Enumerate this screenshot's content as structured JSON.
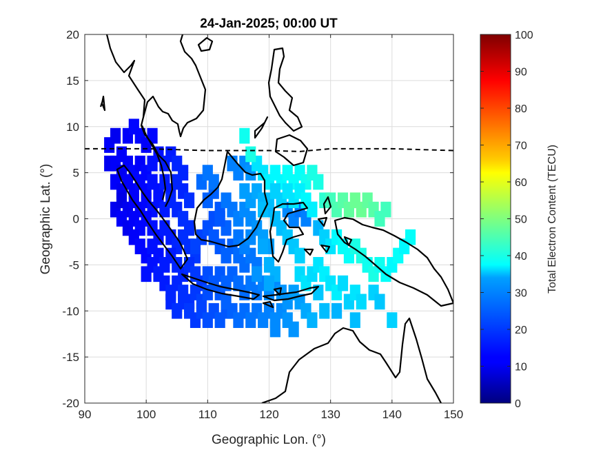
{
  "chart_data": {
    "type": "heatmap",
    "title": "24-Jan-2025; 00:00 UT",
    "xlabel": "Geographic Lon. (°)",
    "ylabel": "Geographic Lat. (°)",
    "xlim": [
      90,
      150
    ],
    "ylim": [
      -20,
      20
    ],
    "xticks": [
      90,
      100,
      110,
      120,
      130,
      140,
      150
    ],
    "yticks": [
      -20,
      -15,
      -10,
      -5,
      0,
      5,
      10,
      15,
      20
    ],
    "grid": true,
    "colormap": "jet",
    "colorbar": {
      "label": "Total Electron Content (TECU)",
      "range": [
        0,
        100
      ],
      "ticks": [
        0,
        10,
        20,
        30,
        40,
        50,
        60,
        70,
        80,
        90,
        100
      ]
    },
    "magnetic_equator": {
      "style": "dashed",
      "points": [
        [
          90,
          7.6
        ],
        [
          100,
          7.6
        ],
        [
          105,
          7.5
        ],
        [
          110,
          7.4
        ],
        [
          120,
          7.4
        ],
        [
          125,
          7.3
        ],
        [
          130,
          7.6
        ],
        [
          140,
          7.6
        ],
        [
          150,
          7.4
        ]
      ]
    },
    "tec_cells": [
      [
        94,
        8,
        12
      ],
      [
        95,
        9,
        11
      ],
      [
        96,
        7,
        12
      ],
      [
        97,
        9,
        12
      ],
      [
        98,
        10,
        13
      ],
      [
        99,
        9,
        13
      ],
      [
        100,
        8,
        12
      ],
      [
        101,
        9,
        13
      ],
      [
        94,
        6,
        11
      ],
      [
        95,
        6,
        12
      ],
      [
        96,
        5,
        11
      ],
      [
        97,
        6,
        12
      ],
      [
        98,
        5,
        13
      ],
      [
        99,
        6,
        12
      ],
      [
        100,
        5,
        13
      ],
      [
        101,
        6,
        14
      ],
      [
        102,
        7,
        14
      ],
      [
        103,
        6,
        15
      ],
      [
        104,
        7,
        15
      ],
      [
        105,
        6,
        16
      ],
      [
        106,
        5,
        16
      ],
      [
        95,
        4,
        12
      ],
      [
        96,
        3,
        11
      ],
      [
        97,
        4,
        12
      ],
      [
        98,
        3,
        12
      ],
      [
        99,
        4,
        13
      ],
      [
        100,
        3,
        13
      ],
      [
        101,
        4,
        14
      ],
      [
        102,
        3,
        14
      ],
      [
        103,
        4,
        15
      ],
      [
        104,
        3,
        15
      ],
      [
        105,
        4,
        16
      ],
      [
        106,
        3,
        16
      ],
      [
        107,
        2,
        17
      ],
      [
        95,
        1,
        11
      ],
      [
        96,
        2,
        10
      ],
      [
        97,
        1,
        11
      ],
      [
        98,
        2,
        12
      ],
      [
        99,
        1,
        12
      ],
      [
        100,
        2,
        13
      ],
      [
        101,
        1,
        14
      ],
      [
        102,
        2,
        14
      ],
      [
        103,
        1,
        15
      ],
      [
        104,
        2,
        16
      ],
      [
        105,
        1,
        16
      ],
      [
        106,
        0,
        17
      ],
      [
        107,
        -1,
        17
      ],
      [
        96,
        0,
        12
      ],
      [
        97,
        -1,
        11
      ],
      [
        98,
        0,
        12
      ],
      [
        99,
        -1,
        13
      ],
      [
        100,
        0,
        13
      ],
      [
        101,
        -1,
        14
      ],
      [
        102,
        -2,
        14
      ],
      [
        103,
        -1,
        15
      ],
      [
        104,
        -2,
        15
      ],
      [
        105,
        -3,
        16
      ],
      [
        106,
        -2,
        17
      ],
      [
        107,
        -3,
        17
      ],
      [
        108,
        -4,
        18
      ],
      [
        98,
        -2,
        12
      ],
      [
        99,
        -3,
        13
      ],
      [
        100,
        -4,
        13
      ],
      [
        101,
        -3,
        14
      ],
      [
        102,
        -4,
        14
      ],
      [
        103,
        -5,
        15
      ],
      [
        104,
        -4,
        15
      ],
      [
        105,
        -5,
        16
      ],
      [
        106,
        -6,
        16
      ],
      [
        107,
        -5,
        17
      ],
      [
        108,
        -6,
        18
      ],
      [
        109,
        -7,
        18
      ],
      [
        100,
        -6,
        14
      ],
      [
        101,
        -5,
        14
      ],
      [
        102,
        -6,
        15
      ],
      [
        103,
        -7,
        15
      ],
      [
        104,
        -8,
        16
      ],
      [
        105,
        -7,
        16
      ],
      [
        106,
        -8,
        17
      ],
      [
        107,
        -9,
        17
      ],
      [
        108,
        -8,
        18
      ],
      [
        109,
        -9,
        19
      ],
      [
        110,
        -8,
        20
      ],
      [
        104,
        -9,
        16
      ],
      [
        105,
        -10,
        17
      ],
      [
        106,
        -9,
        17
      ],
      [
        107,
        -10,
        18
      ],
      [
        108,
        -11,
        18
      ],
      [
        109,
        -10,
        19
      ],
      [
        110,
        -11,
        20
      ],
      [
        111,
        -10,
        20
      ],
      [
        112,
        -11,
        21
      ],
      [
        113,
        -10,
        21
      ],
      [
        112,
        -8,
        21
      ],
      [
        113,
        -9,
        22
      ],
      [
        114,
        -10,
        22
      ],
      [
        115,
        -11,
        23
      ],
      [
        116,
        -10,
        23
      ],
      [
        117,
        -11,
        24
      ],
      [
        118,
        -10,
        24
      ],
      [
        119,
        -11,
        25
      ],
      [
        120,
        -10,
        25
      ],
      [
        121,
        -11,
        26
      ],
      [
        122,
        -10,
        26
      ],
      [
        123,
        -11,
        27
      ],
      [
        124,
        -12,
        27
      ],
      [
        121,
        -12,
        26
      ],
      [
        110,
        -6,
        20
      ],
      [
        111,
        -7,
        21
      ],
      [
        112,
        -6,
        21
      ],
      [
        113,
        -7,
        22
      ],
      [
        114,
        -6,
        22
      ],
      [
        115,
        -7,
        23
      ],
      [
        116,
        -8,
        23
      ],
      [
        117,
        -7,
        24
      ],
      [
        118,
        -8,
        24
      ],
      [
        119,
        -7,
        25
      ],
      [
        120,
        -8,
        26
      ],
      [
        121,
        -7,
        26
      ],
      [
        122,
        -8,
        27
      ],
      [
        123,
        -9,
        27
      ],
      [
        124,
        -8,
        28
      ],
      [
        125,
        -9,
        28
      ],
      [
        126,
        -10,
        29
      ],
      [
        108,
        -3,
        19
      ],
      [
        109,
        -2,
        19
      ],
      [
        110,
        -1,
        20
      ],
      [
        111,
        0,
        20
      ],
      [
        112,
        1,
        21
      ],
      [
        110,
        2,
        22
      ],
      [
        111,
        3,
        22
      ],
      [
        112,
        -3,
        21
      ],
      [
        113,
        -4,
        22
      ],
      [
        114,
        -3,
        22
      ],
      [
        115,
        -4,
        23
      ],
      [
        116,
        -5,
        23
      ],
      [
        117,
        -4,
        24
      ],
      [
        118,
        -5,
        24
      ],
      [
        109,
        4,
        23
      ],
      [
        110,
        5,
        24
      ],
      [
        111,
        4,
        24
      ],
      [
        114,
        6,
        25
      ],
      [
        115,
        5,
        25
      ],
      [
        116,
        6,
        26
      ],
      [
        117,
        5,
        27
      ],
      [
        113,
        2,
        24
      ],
      [
        114,
        1,
        24
      ],
      [
        115,
        0,
        25
      ],
      [
        116,
        1,
        26
      ],
      [
        117,
        0,
        26
      ],
      [
        118,
        -1,
        27
      ],
      [
        119,
        -2,
        28
      ],
      [
        120,
        -3,
        28
      ],
      [
        116,
        3,
        28
      ],
      [
        117,
        2,
        28
      ],
      [
        118,
        3,
        29
      ],
      [
        119,
        2,
        30
      ],
      [
        120,
        1,
        30
      ],
      [
        121,
        0,
        31
      ],
      [
        122,
        -1,
        31
      ],
      [
        123,
        -2,
        32
      ],
      [
        124,
        -3,
        32
      ],
      [
        125,
        -4,
        33
      ],
      [
        118,
        6,
        35
      ],
      [
        119,
        5,
        35
      ],
      [
        120,
        4,
        36
      ],
      [
        121,
        5,
        37
      ],
      [
        122,
        4,
        37
      ],
      [
        123,
        5,
        38
      ],
      [
        124,
        4,
        38
      ],
      [
        125,
        5,
        38
      ],
      [
        126,
        4,
        39
      ],
      [
        127,
        5,
        40
      ],
      [
        128,
        4,
        40
      ],
      [
        129,
        2,
        42
      ],
      [
        130,
        2,
        44
      ],
      [
        131,
        1,
        45
      ],
      [
        132,
        2,
        46
      ],
      [
        133,
        1,
        47
      ],
      [
        134,
        2,
        48
      ],
      [
        135,
        1,
        48
      ],
      [
        136,
        2,
        47
      ],
      [
        137,
        1,
        46
      ],
      [
        138,
        0,
        44
      ],
      [
        139,
        1,
        44
      ],
      [
        116,
        9,
        39
      ],
      [
        117,
        7,
        40
      ],
      [
        122,
        2,
        27
      ],
      [
        123,
        1,
        26
      ],
      [
        124,
        0,
        25
      ],
      [
        125,
        1,
        24
      ],
      [
        126,
        0,
        25
      ],
      [
        127,
        1,
        27
      ],
      [
        128,
        -1,
        30
      ],
      [
        129,
        -2,
        33
      ],
      [
        130,
        -3,
        35
      ],
      [
        131,
        -2,
        37
      ],
      [
        132,
        -3,
        38
      ],
      [
        133,
        -4,
        38
      ],
      [
        134,
        -3,
        40
      ],
      [
        135,
        -4,
        40
      ],
      [
        136,
        -5,
        39
      ],
      [
        137,
        -6,
        40
      ],
      [
        138,
        -5,
        39
      ],
      [
        139,
        -6,
        38
      ],
      [
        140,
        -5,
        37
      ],
      [
        141,
        -4,
        38
      ],
      [
        142,
        -3,
        37
      ],
      [
        143,
        -2,
        38
      ],
      [
        125,
        -6,
        34
      ],
      [
        126,
        -7,
        35
      ],
      [
        127,
        -6,
        34
      ],
      [
        128,
        -5,
        35
      ],
      [
        129,
        -6,
        36
      ],
      [
        130,
        -7,
        35
      ],
      [
        131,
        -8,
        36
      ],
      [
        132,
        -7,
        34
      ],
      [
        133,
        -9,
        33
      ],
      [
        134,
        -8,
        35
      ],
      [
        135,
        -9,
        34
      ],
      [
        137,
        -8,
        33
      ],
      [
        138,
        -9,
        32
      ],
      [
        140,
        -11,
        33
      ],
      [
        134,
        -11,
        31
      ],
      [
        131,
        -10,
        30
      ],
      [
        128,
        -8,
        32
      ],
      [
        129,
        -10,
        31
      ],
      [
        127,
        -11,
        30
      ],
      [
        119,
        -3,
        29
      ],
      [
        120,
        -5,
        30
      ],
      [
        121,
        -6,
        30
      ],
      [
        120,
        -7,
        29
      ],
      [
        118,
        -6,
        27
      ],
      [
        115,
        -2,
        24
      ],
      [
        116,
        -3,
        25
      ],
      [
        117,
        -2,
        26
      ],
      [
        113,
        -1,
        22
      ],
      [
        112,
        0,
        21
      ],
      [
        111,
        -2,
        21
      ],
      [
        119,
        1,
        31
      ],
      [
        120,
        2,
        31
      ],
      [
        121,
        3,
        33
      ],
      [
        122,
        2,
        33
      ],
      [
        123,
        3,
        35
      ],
      [
        124,
        2,
        35
      ],
      [
        125,
        3,
        36
      ],
      [
        126,
        2,
        37
      ],
      [
        127,
        1,
        36
      ]
    ]
  }
}
